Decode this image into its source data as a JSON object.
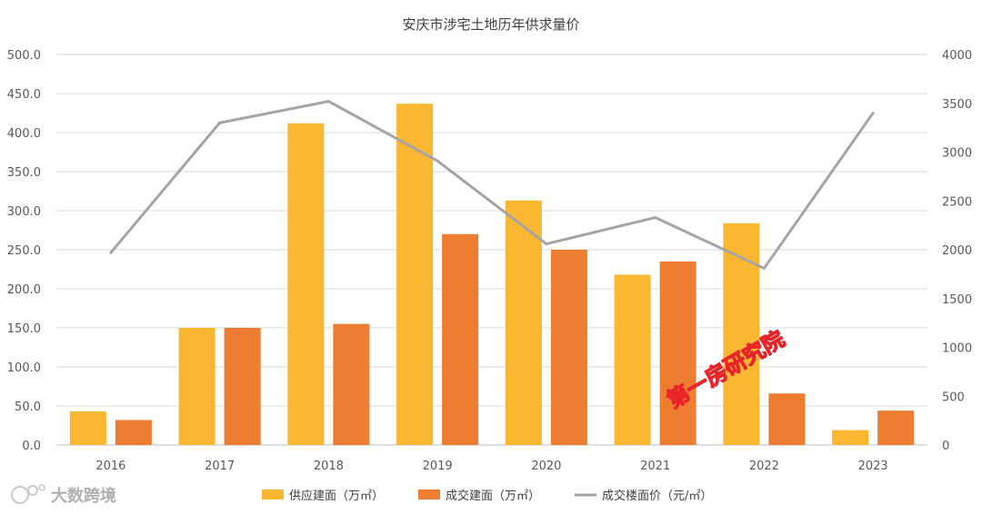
{
  "chart_data": {
    "type": "bar",
    "title": "安庆市涉宅土地历年供求量价",
    "categories": [
      "2016",
      "2017",
      "2018",
      "2019",
      "2020",
      "2021",
      "2022",
      "2023"
    ],
    "y_left": {
      "ylim": [
        0,
        500
      ],
      "ticks": [
        "0.0",
        "50.0",
        "100.0",
        "150.0",
        "200.0",
        "250.0",
        "300.0",
        "350.0",
        "400.0",
        "450.0",
        "500.0"
      ]
    },
    "y_right": {
      "ylim": [
        0,
        4000
      ],
      "ticks": [
        "0",
        "500",
        "1000",
        "1500",
        "2000",
        "2500",
        "3000",
        "3500",
        "4000"
      ]
    },
    "grid": true,
    "legend_position": "bottom",
    "series": [
      {
        "name": "供应建面（万㎡）",
        "type": "bar",
        "axis": "left",
        "color": "#FBB632",
        "values": [
          43,
          150,
          412,
          437,
          313,
          218,
          284,
          19
        ]
      },
      {
        "name": "成交建面（万㎡）",
        "type": "bar",
        "axis": "left",
        "color": "#ED7D31",
        "values": [
          32,
          150,
          155,
          270,
          250,
          235,
          66,
          44
        ]
      },
      {
        "name": "成交楼面价（元/㎡）",
        "type": "line",
        "axis": "right",
        "color": "#A5A5A5",
        "values": [
          1970,
          3300,
          3520,
          2910,
          2060,
          2330,
          1810,
          3400
        ]
      }
    ]
  },
  "watermarks": {
    "stamp": "第一房研究院",
    "brand": "大数跨境",
    "stamp_color": "#E8232A"
  }
}
